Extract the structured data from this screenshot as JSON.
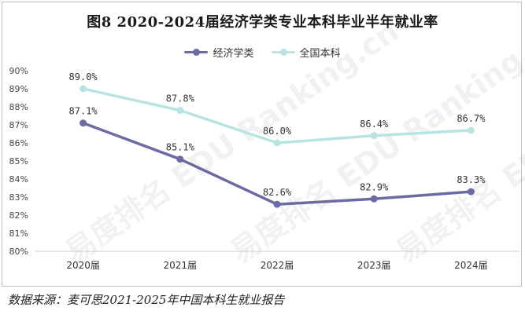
{
  "chart_data": {
    "type": "line",
    "title": "图8  2020-2024届经济学类专业本科毕业半年就业率",
    "categories": [
      "2020届",
      "2021届",
      "2022届",
      "2023届",
      "2024届"
    ],
    "series": [
      {
        "name": "经济学类",
        "values": [
          87.1,
          85.1,
          82.6,
          82.9,
          83.3
        ],
        "labels": [
          "87.1%",
          "85.1%",
          "82.6%",
          "82.9%",
          "83.3%"
        ],
        "color": "#6b6ba3"
      },
      {
        "name": "全国本科",
        "values": [
          89.0,
          87.8,
          86.0,
          86.4,
          86.7
        ],
        "labels": [
          "89.0%",
          "87.8%",
          "86.0%",
          "86.4%",
          "86.7%"
        ],
        "color": "#b7e4e2"
      }
    ],
    "yticks": [
      "80%",
      "81%",
      "82%",
      "83%",
      "84%",
      "85%",
      "86%",
      "87%",
      "88%",
      "89%",
      "90%"
    ],
    "ylim": [
      80,
      90
    ],
    "legend_position": "top-center",
    "grid": false
  },
  "source": "数据来源：麦可思2021-2025年中国本科生就业报告",
  "watermark": "易度排名 EDU Ranking.cn"
}
